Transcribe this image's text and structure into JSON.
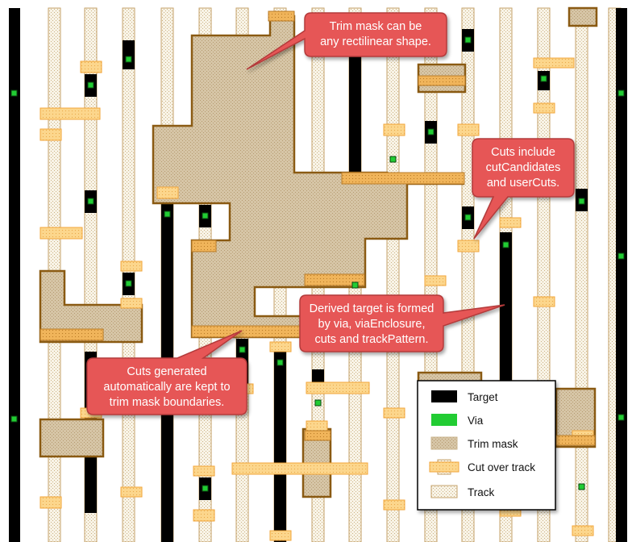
{
  "callouts": [
    {
      "id": "trim-mask-shape",
      "lines": [
        "Trim mask can be",
        "any rectilinear shape."
      ]
    },
    {
      "id": "cuts-include",
      "lines": [
        "Cuts include",
        "cutCandidates",
        "and userCuts."
      ]
    },
    {
      "id": "derived-target",
      "lines": [
        "Derived target is formed",
        "by via, viaEnclosure,",
        "cuts and trackPattern."
      ]
    },
    {
      "id": "cuts-generated",
      "lines": [
        "Cuts generated",
        "automatically are kept to",
        "trim mask boundaries."
      ]
    }
  ],
  "legend": {
    "items": [
      {
        "label": "Target",
        "swatch": "target"
      },
      {
        "label": "Via",
        "swatch": "via"
      },
      {
        "label": "Trim mask",
        "swatch": "trim"
      },
      {
        "label": "Cut over track",
        "swatch": "cut"
      },
      {
        "label": "Track",
        "swatch": "track"
      }
    ]
  },
  "colors": {
    "target": "#000000",
    "via_fill": "#22cc33",
    "via_edge": "#0a5a12",
    "trim_fill": "#d4c2a4",
    "trim_edge": "#8a5a12",
    "cut_fill": "#fbd48a",
    "cut_edge": "#f2a53a",
    "track_fill": "#f5eedd",
    "track_edge": "#c4a26a",
    "callout_fill": "#e65757",
    "callout_edge": "#b33a3a"
  }
}
